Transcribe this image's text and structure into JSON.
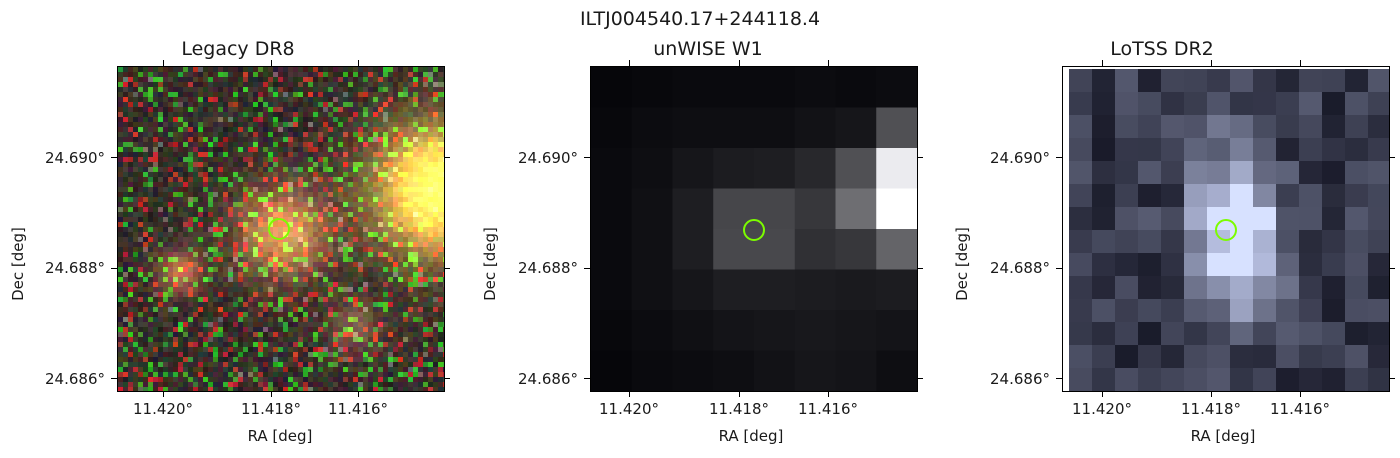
{
  "figure": {
    "title": "ILTJ004540.17+244118.4"
  },
  "panels": [
    {
      "title": "Legacy DR8",
      "xlabel": "RA [deg]",
      "ylabel": "Dec [deg]",
      "xticks": [
        "11.420°",
        "11.418°",
        "11.416°"
      ],
      "yticks": [
        "24.690°",
        "24.688°",
        "24.686°"
      ],
      "image_kind": "rgb-noise"
    },
    {
      "title": "unWISE W1",
      "xlabel": "RA [deg]",
      "ylabel": "Dec [deg]",
      "xticks": [
        "11.420°",
        "11.418°",
        "11.416°"
      ],
      "yticks": [
        "24.690°",
        "24.688°",
        "24.686°"
      ],
      "image_kind": "gray-grid"
    },
    {
      "title": "LoTSS DR2",
      "xlabel": "RA [deg]",
      "ylabel": "Dec [deg]",
      "xticks": [
        "11.420°",
        "11.418°",
        "11.416°"
      ],
      "yticks": [
        "24.690°",
        "24.688°",
        "24.686°"
      ],
      "image_kind": "gray-grid"
    }
  ],
  "colors": {
    "marker": "#7cfc00"
  }
}
